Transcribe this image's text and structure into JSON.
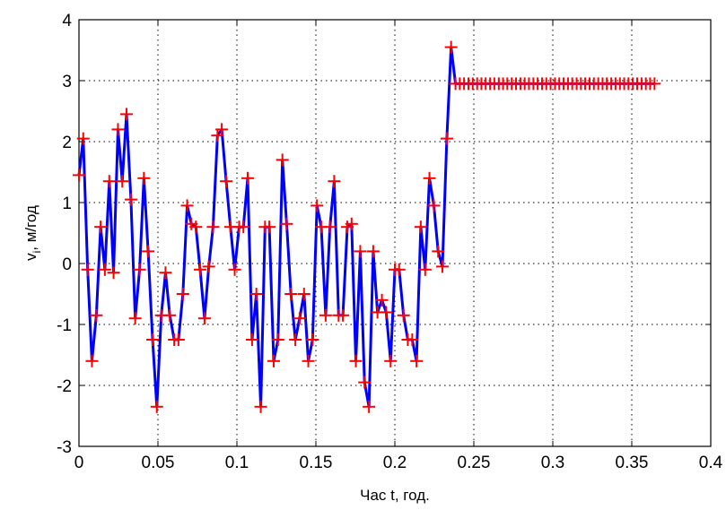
{
  "chart_data": {
    "type": "line",
    "xlabel": "Час t, год.",
    "ylabel": "v_i, м/год",
    "ylabel_main": "v",
    "ylabel_sub": "i",
    "ylabel_rest": ", м/год",
    "xlim": [
      0,
      0.4
    ],
    "ylim": [
      -3,
      4
    ],
    "xticks": [
      0,
      0.05,
      0.1,
      0.15,
      0.2,
      0.25,
      0.3,
      0.35,
      0.4
    ],
    "xtick_labels": [
      "0",
      "0.05",
      "0.1",
      "0.15",
      "0.2",
      "0.25",
      "0.3",
      "0.35",
      "0.4"
    ],
    "yticks": [
      -3,
      -2,
      -1,
      0,
      1,
      2,
      3,
      4
    ],
    "ytick_labels": [
      "-3",
      "-2",
      "-1",
      "0",
      "1",
      "2",
      "3",
      "4"
    ],
    "grid": true,
    "grid_style": "dotted",
    "series": [
      {
        "line_color": "#0000ff",
        "marker": "+",
        "marker_color": "#ff0000",
        "x": [
          0,
          0.0027,
          0.0055,
          0.0082,
          0.011,
          0.0137,
          0.0164,
          0.0192,
          0.0219,
          0.0247,
          0.0274,
          0.0301,
          0.0329,
          0.0356,
          0.0384,
          0.0411,
          0.0438,
          0.0466,
          0.0493,
          0.0521,
          0.0548,
          0.0575,
          0.0603,
          0.063,
          0.0658,
          0.0685,
          0.0712,
          0.074,
          0.0767,
          0.0795,
          0.0822,
          0.0849,
          0.0877,
          0.0904,
          0.0932,
          0.0959,
          0.0986,
          0.1014,
          0.1041,
          0.1068,
          0.1096,
          0.1123,
          0.1151,
          0.1178,
          0.1205,
          0.1233,
          0.126,
          0.1288,
          0.1315,
          0.1342,
          0.137,
          0.1397,
          0.1425,
          0.1452,
          0.1479,
          0.1507,
          0.1534,
          0.1562,
          0.1589,
          0.1616,
          0.1644,
          0.1671,
          0.1699,
          0.1726,
          0.1753,
          0.1781,
          0.1808,
          0.1836,
          0.1863,
          0.189,
          0.1918,
          0.1945,
          0.1973,
          0.2,
          0.2027,
          0.2055,
          0.2082,
          0.211,
          0.2137,
          0.2164,
          0.2192,
          0.2219,
          0.2247,
          0.2274,
          0.2301,
          0.2329,
          0.2356,
          0.2384,
          0.2411,
          0.2438,
          0.2466,
          0.2493,
          0.2521,
          0.2548,
          0.2575,
          0.2603,
          0.263,
          0.2658,
          0.2685,
          0.2712,
          0.274,
          0.2767,
          0.2795,
          0.2822,
          0.2849,
          0.2877,
          0.2904,
          0.2932,
          0.2959,
          0.2986,
          0.3014,
          0.3041,
          0.3068,
          0.3096,
          0.3123,
          0.3151,
          0.3178,
          0.3205,
          0.3233,
          0.326,
          0.3288,
          0.3315,
          0.3342,
          0.337,
          0.3397,
          0.3425,
          0.3452,
          0.3479,
          0.3507,
          0.3534,
          0.3562,
          0.3589,
          0.3616,
          0.3644
        ],
        "y": [
          1.45,
          2.05,
          -0.1,
          -1.6,
          -0.85,
          0.6,
          -0.1,
          1.35,
          -0.15,
          2.2,
          1.35,
          2.45,
          1.05,
          -0.9,
          -0.1,
          1.4,
          0.2,
          -1.25,
          -2.35,
          -0.85,
          -0.15,
          -0.85,
          -1.25,
          -1.25,
          -0.5,
          0.95,
          0.65,
          0.6,
          -0.1,
          -0.9,
          -0.05,
          0.6,
          2.1,
          2.2,
          1.35,
          0.6,
          -0.1,
          0.6,
          0.6,
          1.4,
          -1.25,
          -0.5,
          -2.35,
          0.6,
          0.6,
          -1.6,
          -1.25,
          1.7,
          0.65,
          -0.5,
          -1.25,
          -0.9,
          -0.5,
          -1.6,
          -1.25,
          0.95,
          0.6,
          -0.85,
          0.6,
          1.35,
          -0.85,
          -0.85,
          0.6,
          0.65,
          -1.6,
          0.2,
          -1.95,
          -2.35,
          0.2,
          -0.8,
          -0.6,
          -0.8,
          -1.6,
          -0.1,
          -0.1,
          -0.85,
          -1.25,
          -1.25,
          -1.6,
          0.6,
          -0.1,
          1.4,
          0.95,
          0.2,
          -0.05,
          2.05,
          3.55,
          2.95,
          2.95,
          2.95,
          2.95,
          2.95,
          2.95,
          2.95,
          2.95,
          2.95,
          2.95,
          2.95,
          2.95,
          2.95,
          2.95,
          2.95,
          2.95,
          2.95,
          2.95,
          2.95,
          2.95,
          2.95,
          2.95,
          2.95,
          2.95,
          2.95,
          2.95,
          2.95,
          2.95,
          2.95,
          2.95,
          2.95,
          2.95,
          2.95,
          2.95,
          2.95,
          2.95,
          2.95,
          2.95,
          2.95,
          2.95,
          2.95,
          2.95,
          2.95,
          2.95,
          2.95,
          2.95,
          2.95
        ]
      }
    ]
  }
}
